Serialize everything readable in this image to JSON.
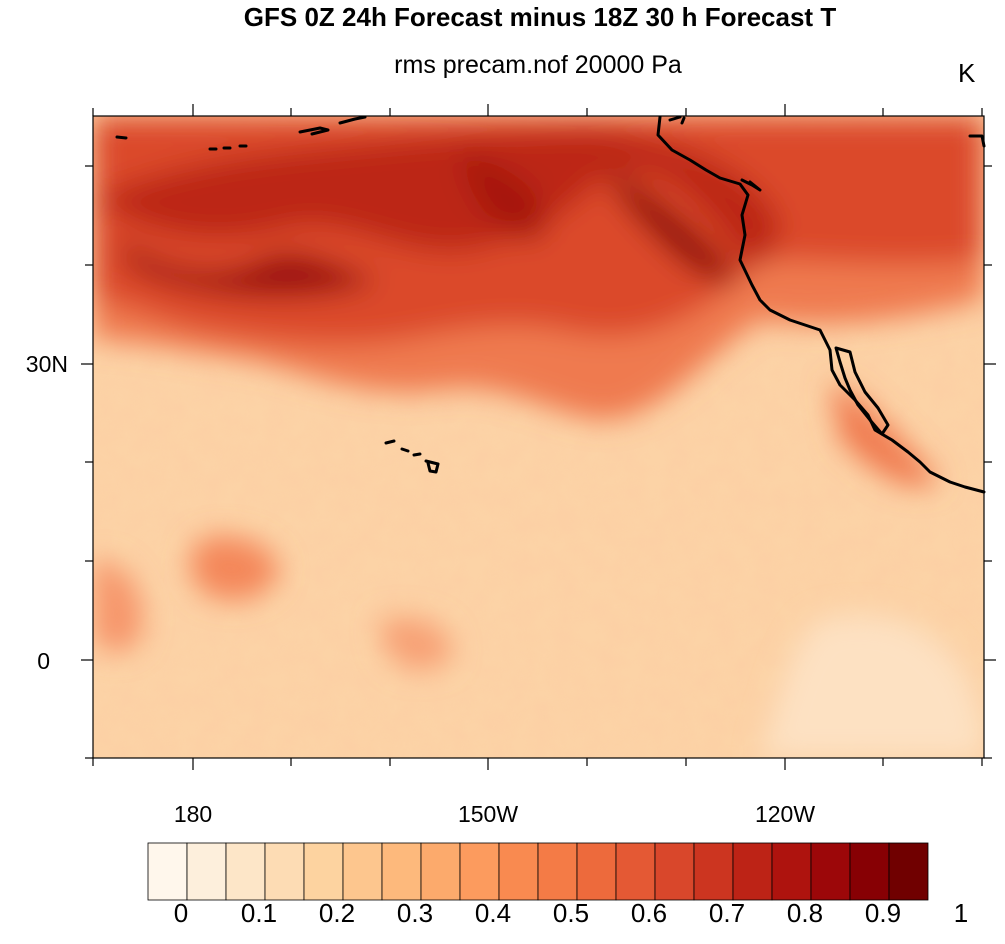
{
  "title": "GFS 0Z 24h Forecast minus 18Z 30 h Forecast T",
  "subtitle": "rms precam.nof 20000 Pa",
  "units": "K",
  "map": {
    "y_axis_labels": [
      "30N",
      "0"
    ],
    "x_axis_labels": [
      "180",
      "150W",
      "120W"
    ]
  },
  "colorbar": {
    "labels": [
      "0",
      "0.1",
      "0.2",
      "0.3",
      "0.4",
      "0.5",
      "0.6",
      "0.7",
      "0.8",
      "0.9",
      "1"
    ],
    "colors": [
      "#fff7ec",
      "#fdefdc",
      "#fde6c8",
      "#fddcb4",
      "#fdd3a0",
      "#fdc68e",
      "#fdb97c",
      "#fcaa6c",
      "#fc9b5e",
      "#f98a50",
      "#f47b46",
      "#ed6a3c",
      "#e45934",
      "#d9472b",
      "#cc3520",
      "#bd2316",
      "#ae130e",
      "#9c0709",
      "#870004",
      "#700000"
    ]
  }
}
